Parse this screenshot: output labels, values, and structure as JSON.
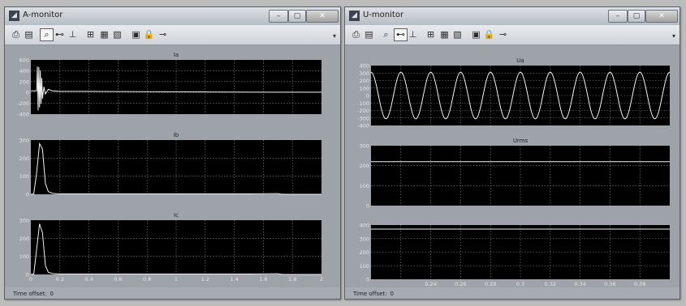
{
  "windows": [
    {
      "title": "A-monitor",
      "time_offset_label": "Time offset:",
      "time_offset_value": "0"
    },
    {
      "title": "U-monitor",
      "time_offset_label": "Time offset:",
      "time_offset_value": "0"
    }
  ],
  "icons": [
    "print-icon",
    "print-preview-icon",
    "zoom-icon",
    "zoom-x-icon",
    "zoom-y-icon",
    "autoscale-icon",
    "save-axes-icon",
    "restore-axes-icon",
    "parameters-icon",
    "lock-icon",
    "select-signals-icon"
  ],
  "colors": {
    "plot_bg": "#000000",
    "trace": "#f2f2f2",
    "grid": "#8a8a8a",
    "tick_text": "#e6e6e6"
  },
  "chart_data": [
    {
      "type": "line",
      "title": "Ia",
      "x_range": [
        0,
        2
      ],
      "ylim": [
        -450,
        600
      ],
      "yticks": [
        "600",
        "400",
        "200",
        "0",
        "-200",
        "-400"
      ],
      "xticks": [],
      "series": [
        {
          "x": [
            0,
            0.04,
            0.045,
            0.05,
            0.055,
            0.06,
            0.065,
            0.07,
            0.075,
            0.08,
            0.09,
            0.1,
            0.12,
            0.15,
            0.2,
            0.4,
            0.8,
            1.2,
            1.6,
            2.0
          ],
          "y": [
            0,
            0,
            470,
            -380,
            460,
            -320,
            400,
            -250,
            250,
            -150,
            80,
            -60,
            30,
            0,
            -10,
            -10,
            -15,
            -20,
            -25,
            -25
          ]
        }
      ]
    },
    {
      "type": "line",
      "title": "Ib",
      "x_range": [
        0,
        2
      ],
      "ylim": [
        0,
        300
      ],
      "yticks": [
        "300",
        "200",
        "100",
        "0"
      ],
      "xticks": [],
      "series": [
        {
          "x": [
            0,
            0.02,
            0.04,
            0.06,
            0.08,
            0.1,
            0.12,
            0.15,
            0.2,
            0.5,
            1.0,
            1.5,
            1.7,
            1.72,
            1.75,
            2.0
          ],
          "y": [
            0,
            2,
            120,
            280,
            250,
            60,
            15,
            5,
            2,
            2,
            2,
            2,
            4,
            1,
            0,
            0
          ]
        }
      ]
    },
    {
      "type": "line",
      "title": "Ic",
      "x_range": [
        0,
        2
      ],
      "ylim": [
        0,
        300
      ],
      "yticks": [
        "300",
        "200",
        "100",
        "0"
      ],
      "xticks": [
        "0",
        "0.2",
        "0.4",
        "0.6",
        "0.8",
        "1",
        "1.2",
        "1.4",
        "1.6",
        "1.8",
        "2"
      ],
      "series": [
        {
          "x": [
            0,
            0.02,
            0.04,
            0.06,
            0.08,
            0.1,
            0.12,
            0.15,
            0.2,
            0.5,
            1.0,
            1.5,
            1.7,
            1.72,
            1.75,
            2.0
          ],
          "y": [
            0,
            2,
            140,
            280,
            230,
            50,
            12,
            5,
            2,
            2,
            2,
            2,
            4,
            1,
            0,
            0
          ]
        }
      ]
    },
    {
      "type": "line",
      "title": "Ua",
      "x_range": [
        0.2,
        0.4
      ],
      "ylim": [
        -400,
        400
      ],
      "yticks": [
        "400",
        "300",
        "200",
        "100",
        "0",
        "-100",
        "-200",
        "-300",
        "-400"
      ],
      "xticks": [],
      "series": [
        {
          "function": "sine",
          "amplitude": 311,
          "frequency_hz": 50,
          "phase_deg": 90
        }
      ]
    },
    {
      "type": "line",
      "title": "Urms",
      "x_range": [
        0.2,
        0.4
      ],
      "ylim": [
        0,
        300
      ],
      "yticks": [
        "300",
        "200",
        "100",
        "0"
      ],
      "xticks": [],
      "series": [
        {
          "x": [
            0.2,
            0.4
          ],
          "y": [
            220,
            220
          ]
        }
      ]
    },
    {
      "type": "line",
      "title": "",
      "x_range": [
        0.2,
        0.4
      ],
      "ylim": [
        0,
        400
      ],
      "yticks": [
        "400",
        "300",
        "200",
        "100",
        "0"
      ],
      "xticks": [
        "0.24",
        "0.26",
        "0.28",
        "0.3",
        "0.32",
        "0.34",
        "0.36",
        "0.38"
      ],
      "series": [
        {
          "x": [
            0.2,
            0.4
          ],
          "y": [
            370,
            370
          ]
        }
      ]
    }
  ]
}
